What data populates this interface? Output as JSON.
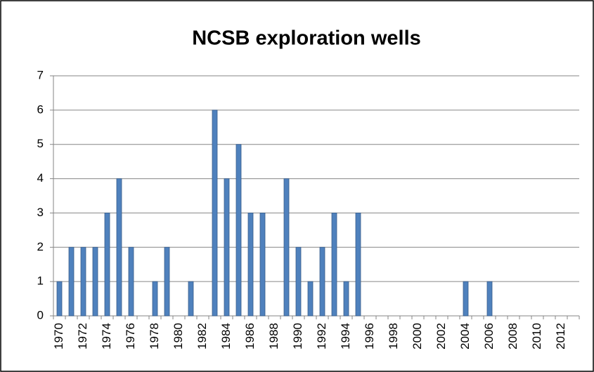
{
  "chart_data": {
    "type": "bar",
    "title": "NCSB exploration wells",
    "categories": [
      "1970",
      null,
      "1972",
      null,
      "1974",
      null,
      "1976",
      null,
      "1978",
      null,
      "1980",
      null,
      "1982",
      null,
      "1984",
      null,
      "1986",
      null,
      "1988",
      null,
      "1990",
      null,
      "1992",
      null,
      "1994",
      null,
      "1996",
      null,
      "1998",
      null,
      "2000",
      null,
      "2002",
      null,
      "2004",
      null,
      "2006",
      null,
      "2008",
      null,
      "2010",
      null,
      "2012",
      null
    ],
    "values": [
      1,
      2,
      2,
      2,
      3,
      4,
      2,
      0,
      1,
      2,
      0,
      1,
      0,
      6,
      4,
      5,
      3,
      3,
      0,
      4,
      2,
      1,
      2,
      3,
      1,
      3,
      0,
      0,
      0,
      0,
      0,
      0,
      0,
      0,
      1,
      0,
      1,
      0,
      0,
      0,
      0,
      0,
      0,
      0
    ],
    "color": "#4f81bd",
    "ylim": [
      0,
      7
    ],
    "yticks": [
      0,
      1,
      2,
      3,
      4,
      5,
      6,
      7
    ],
    "grid": true
  }
}
